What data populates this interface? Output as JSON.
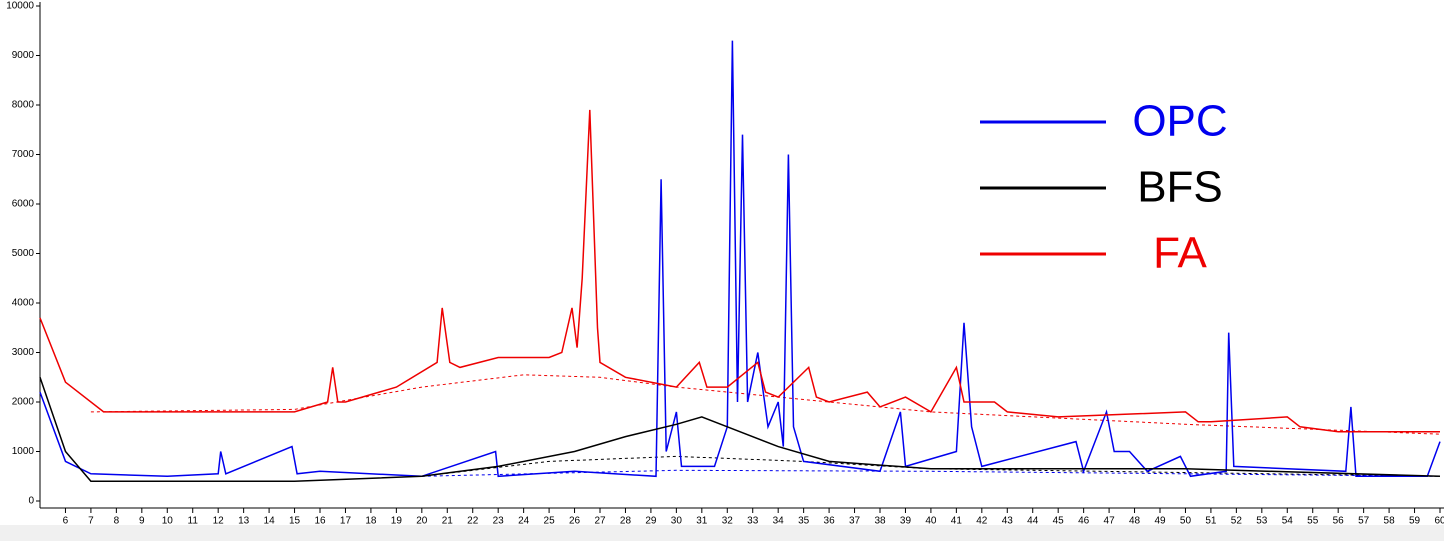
{
  "chart_data": {
    "type": "line",
    "xlim": [
      5,
      60
    ],
    "ylim": [
      0,
      10000
    ],
    "yticks": [
      0,
      1000,
      2000,
      3000,
      4000,
      5000,
      6000,
      7000,
      8000,
      9000,
      10000
    ],
    "xticks": [
      6,
      7,
      8,
      9,
      10,
      11,
      12,
      13,
      14,
      15,
      16,
      17,
      18,
      19,
      20,
      21,
      22,
      23,
      24,
      25,
      26,
      27,
      28,
      29,
      30,
      31,
      32,
      33,
      34,
      35,
      36,
      37,
      38,
      39,
      40,
      41,
      42,
      43,
      44,
      45,
      46,
      47,
      48,
      49,
      50,
      51,
      52,
      53,
      54,
      55,
      56,
      57,
      58,
      59,
      60
    ],
    "legend": "upper right",
    "series": [
      {
        "name": "OPC",
        "color": "#0000ee",
        "x": [
          5,
          6,
          7,
          10,
          12,
          12.1,
          12.3,
          14.9,
          15.1,
          16,
          20,
          22.9,
          23,
          26,
          29.2,
          29.4,
          29.6,
          30,
          30.2,
          31.5,
          32,
          32.2,
          32.4,
          32.6,
          32.8,
          33.2,
          33.6,
          34,
          34.2,
          34.4,
          34.6,
          35,
          38,
          38.8,
          39,
          41,
          41.3,
          41.6,
          42,
          45.7,
          46,
          46.9,
          47.2,
          47.8,
          48.5,
          49.8,
          50.2,
          51.6,
          51.7,
          51.9,
          56.3,
          56.5,
          56.7,
          59.5,
          60
        ],
        "values": [
          2200,
          800,
          550,
          500,
          550,
          1000,
          550,
          1100,
          550,
          600,
          500,
          1000,
          500,
          600,
          500,
          6500,
          1000,
          1800,
          700,
          700,
          1500,
          9300,
          2000,
          7400,
          2000,
          3000,
          1500,
          2000,
          1100,
          7000,
          1500,
          800,
          600,
          1800,
          700,
          1000,
          3600,
          1500,
          700,
          1200,
          600,
          1800,
          1000,
          1000,
          600,
          900,
          500,
          600,
          3400,
          700,
          600,
          1900,
          500,
          500,
          1200
        ]
      },
      {
        "name": "BFS",
        "color": "#000000",
        "x": [
          5,
          6,
          7,
          10,
          15,
          20,
          23,
          26,
          28,
          30,
          31,
          32,
          34,
          36,
          40,
          50,
          60
        ],
        "values": [
          2500,
          1000,
          400,
          400,
          400,
          500,
          700,
          1000,
          1300,
          1550,
          1700,
          1500,
          1100,
          800,
          650,
          650,
          500
        ]
      },
      {
        "name": "FA",
        "color": "#ee0000",
        "x": [
          5,
          6,
          7.5,
          15,
          16.3,
          16.5,
          16.7,
          17,
          19,
          20.6,
          20.8,
          21.1,
          21.5,
          23,
          25,
          25.5,
          25.9,
          26.1,
          26.3,
          26.6,
          26.9,
          27,
          28,
          30,
          30.9,
          31.2,
          32,
          33.2,
          33.5,
          34,
          35.2,
          35.5,
          36,
          37.5,
          38,
          39,
          40,
          41,
          41.3,
          42.5,
          43,
          45,
          50,
          50.5,
          51,
          54,
          54.5,
          56,
          60
        ],
        "values": [
          3700,
          2400,
          1800,
          1800,
          2000,
          2700,
          2000,
          2000,
          2300,
          2800,
          3900,
          2800,
          2700,
          2900,
          2900,
          3000,
          3900,
          3100,
          4500,
          7900,
          3500,
          2800,
          2500,
          2300,
          2800,
          2300,
          2300,
          2800,
          2200,
          2100,
          2700,
          2100,
          2000,
          2200,
          1900,
          2100,
          1800,
          2700,
          2000,
          2000,
          1800,
          1700,
          1800,
          1600,
          1600,
          1700,
          1500,
          1400,
          1400
        ]
      }
    ],
    "baselines": [
      {
        "color": "#ee0000",
        "dash": true,
        "x": [
          7,
          15,
          20,
          24,
          27,
          30,
          35,
          40,
          50,
          60
        ],
        "values": [
          1800,
          1850,
          2300,
          2550,
          2500,
          2300,
          2050,
          1800,
          1550,
          1350
        ]
      },
      {
        "color": "#000000",
        "dash": true,
        "x": [
          20,
          25,
          30,
          35,
          40,
          60
        ],
        "values": [
          500,
          800,
          900,
          800,
          650,
          500
        ]
      },
      {
        "color": "#0000ee",
        "dash": true,
        "x": [
          20,
          30,
          40,
          60
        ],
        "values": [
          500,
          620,
          600,
          500
        ]
      }
    ]
  }
}
